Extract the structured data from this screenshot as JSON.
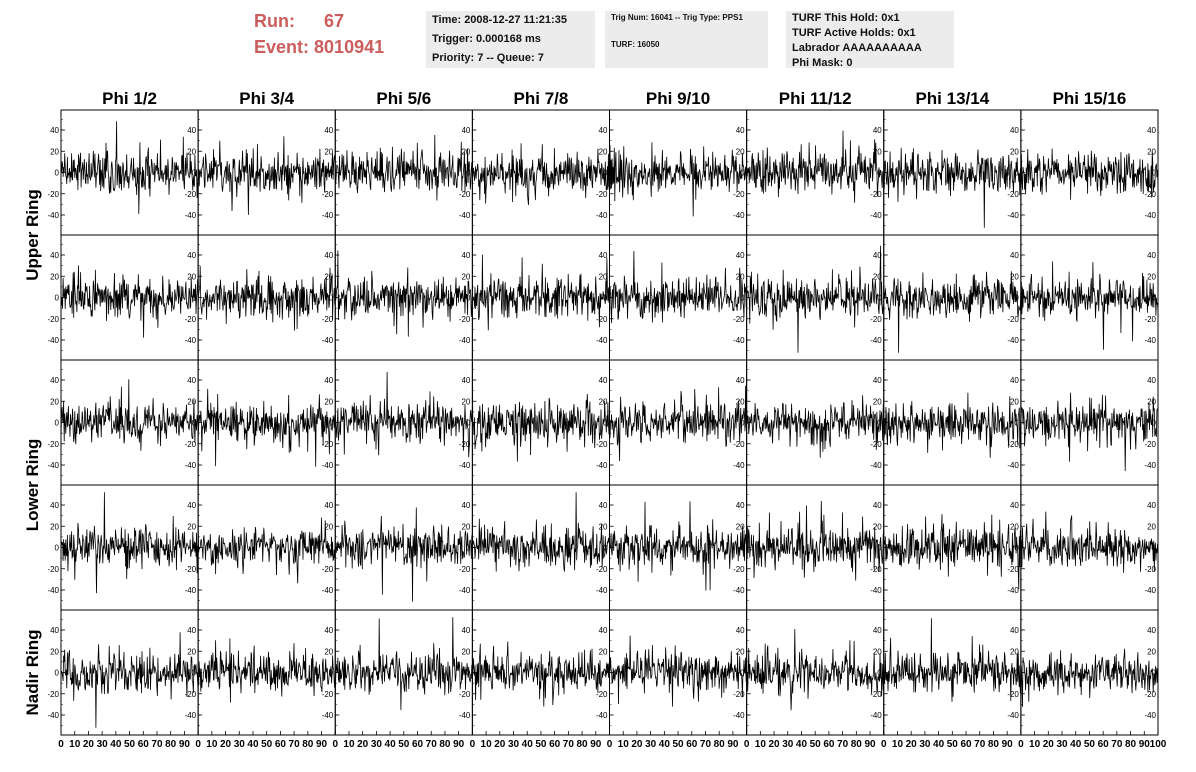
{
  "header": {
    "run_label": "Run:",
    "run_value": "67",
    "event_label": "Event:",
    "event_value": "8010941",
    "time_box": {
      "line1": "Time: 2008-12-27 11:21:35",
      "line2": "Trigger: 0.000168 ms",
      "line3": "Priority: 7 -- Queue: 7"
    },
    "trig_box": {
      "line1": "Trig Num: 16041 -- Trig Type: PPS1",
      "line2": "TURF: 16050"
    },
    "turf_box": {
      "line1": "TURF This Hold: 0x1",
      "line2": "TURF Active Holds: 0x1",
      "line3": "Labrador AAAAAAAAAA",
      "line4": "Phi Mask: 0"
    }
  },
  "colors": {
    "header_red": "#cd5c5c",
    "box_bg": "#ececec",
    "trace": "#000000"
  },
  "chart_data": {
    "type": "line",
    "columns": [
      "Phi 1/2",
      "Phi 3/4",
      "Phi 5/6",
      "Phi 7/8",
      "Phi 9/10",
      "Phi 11/12",
      "Phi 13/14",
      "Phi 15/16"
    ],
    "rows": [
      "Upper Ring",
      "Upper Ring",
      "Lower Ring",
      "Lower Ring",
      "Nadir Ring"
    ],
    "xlim": [
      0,
      100
    ],
    "ylim": [
      -56,
      56
    ],
    "y_ticks": [
      -40,
      -20,
      0,
      20,
      40
    ],
    "x_ticks": [
      0,
      10,
      20,
      30,
      40,
      50,
      60,
      70,
      80,
      90,
      100
    ],
    "samples_per_trace": 260,
    "noise_amplitude": 13,
    "seed": 8010941
  }
}
